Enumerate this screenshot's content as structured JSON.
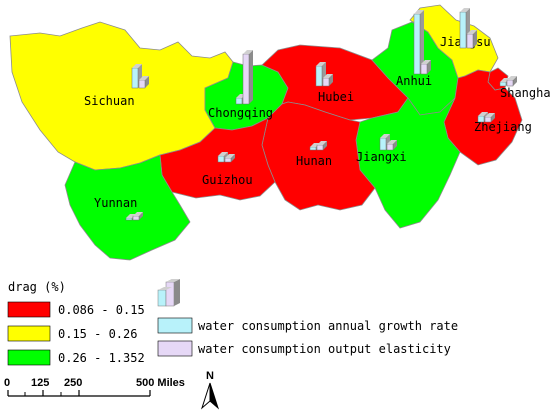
{
  "provinces": [
    {
      "name": "Sichuan",
      "class": "yellow"
    },
    {
      "name": "Chongqing",
      "class": "green"
    },
    {
      "name": "Hubei",
      "class": "red"
    },
    {
      "name": "Anhui",
      "class": "green"
    },
    {
      "name": "Jiangsu",
      "class": "yellow"
    },
    {
      "name": "Shanghai",
      "class": "red"
    },
    {
      "name": "Zhejiang",
      "class": "red"
    },
    {
      "name": "Jiangxi",
      "class": "green"
    },
    {
      "name": "Hunan",
      "class": "red"
    },
    {
      "name": "Guizhou",
      "class": "red"
    },
    {
      "name": "Yunnan",
      "class": "green"
    }
  ],
  "colors": {
    "red": "#ff0000",
    "yellow": "#ffff00",
    "green": "#00ff00",
    "cyan_bar": "#b8f2fa",
    "lilac_bar": "#e6d8f6",
    "border": "#8c8c8c"
  },
  "legend": {
    "title": "drag (%)",
    "classes": [
      {
        "label": "0.086 - 0.15",
        "color": "red"
      },
      {
        "label": "0.15 - 0.26",
        "color": "yellow"
      },
      {
        "label": "0.26 - 1.352",
        "color": "green"
      }
    ],
    "bars": [
      {
        "label": "water consumption annual growth rate",
        "color": "cyan_bar"
      },
      {
        "label": "water consumption output elasticity",
        "color": "lilac_bar"
      }
    ]
  },
  "scale": {
    "ticks": [
      "0",
      "125",
      "250",
      "500 Miles"
    ]
  },
  "north": {
    "label": "N"
  }
}
